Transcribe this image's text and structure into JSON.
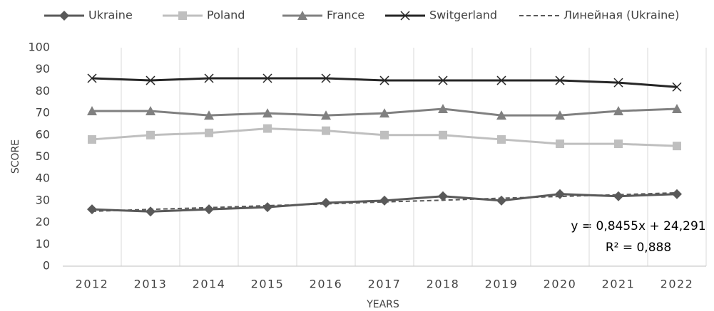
{
  "chart_data": {
    "type": "line",
    "categories": [
      "2012",
      "2013",
      "2014",
      "2015",
      "2016",
      "2017",
      "2018",
      "2019",
      "2020",
      "2021",
      "2022"
    ],
    "series": [
      {
        "name": "Ukraine",
        "color": "#595959",
        "marker": "diamond",
        "values": [
          26,
          25,
          26,
          27,
          29,
          30,
          32,
          30,
          33,
          32,
          33
        ]
      },
      {
        "name": "Poland",
        "color": "#bfbfbf",
        "marker": "square",
        "values": [
          58,
          60,
          61,
          63,
          62,
          60,
          60,
          58,
          56,
          56,
          55
        ]
      },
      {
        "name": "France",
        "color": "#808080",
        "marker": "triangle",
        "values": [
          71,
          71,
          69,
          70,
          69,
          70,
          72,
          69,
          69,
          71,
          72
        ]
      },
      {
        "name": "Switgerland",
        "color": "#262626",
        "marker": "x",
        "values": [
          86,
          85,
          86,
          86,
          86,
          85,
          85,
          85,
          85,
          84,
          82
        ]
      },
      {
        "name": "Линейная (Ukraine)",
        "color": "#595959",
        "dashed": true,
        "values": [
          25.1,
          26.0,
          26.8,
          27.7,
          28.5,
          29.4,
          30.2,
          31.1,
          31.9,
          32.7,
          33.6
        ]
      }
    ],
    "ylim": [
      0,
      100
    ],
    "yticks": [
      0,
      10,
      20,
      30,
      40,
      50,
      60,
      70,
      80,
      90,
      100
    ],
    "xlabel": "YEARS",
    "ylabel": "SCORE",
    "annotations": [
      "y = 0,8455x + 24,291",
      "R² = 0,888"
    ],
    "grid": "vertical",
    "legend": "top"
  }
}
